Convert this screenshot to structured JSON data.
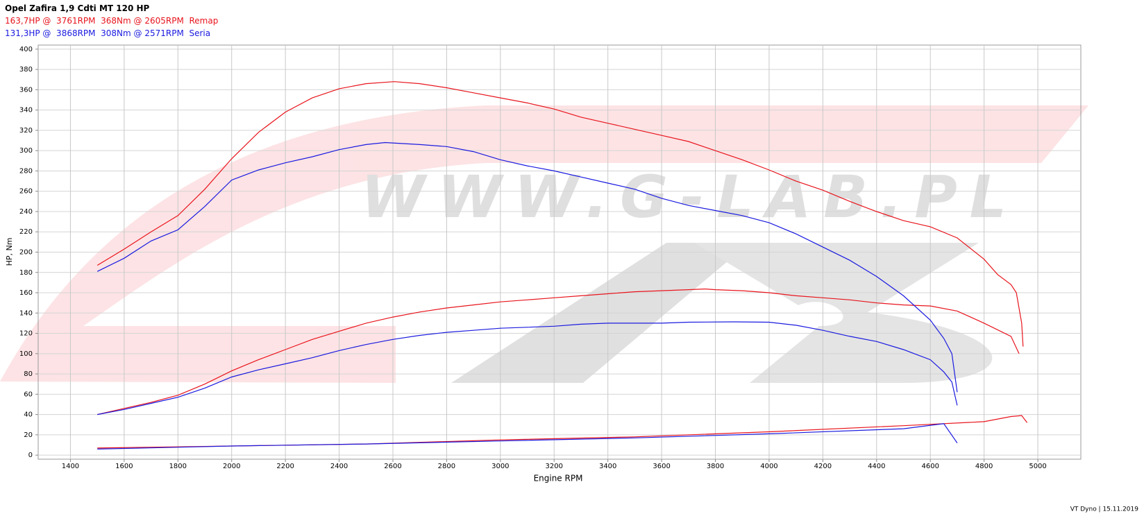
{
  "chart_data": {
    "type": "line",
    "title": "Opel Zafira 1,9 Cdti MT 120 HP",
    "x_label": "Engine RPM",
    "y_label": "HP, Nm",
    "footer": "VT Dyno | 15.11.2019",
    "xlim": [
      1280,
      5160
    ],
    "ylim": [
      -4,
      404
    ],
    "xticks": [
      1400,
      1600,
      1800,
      2000,
      2200,
      2400,
      2600,
      2800,
      3000,
      3200,
      3400,
      3600,
      3800,
      4000,
      4200,
      4400,
      4600,
      4800,
      5000
    ],
    "yticks": [
      0,
      20,
      40,
      60,
      80,
      100,
      120,
      140,
      160,
      180,
      200,
      220,
      240,
      260,
      280,
      300,
      320,
      340,
      360,
      380,
      400
    ],
    "grid": true,
    "series": [
      {
        "name": "Remap",
        "color": "#e8141c",
        "summary": "163,7HP @  3761RPM  368Nm @ 2605RPM",
        "torque": {
          "x": [
            1500,
            1600,
            1700,
            1800,
            1900,
            2000,
            2100,
            2200,
            2300,
            2400,
            2500,
            2605,
            2700,
            2800,
            2900,
            3000,
            3100,
            3200,
            3300,
            3400,
            3500,
            3600,
            3700,
            3800,
            3900,
            4000,
            4100,
            4200,
            4300,
            4400,
            4500,
            4600,
            4700,
            4800,
            4850,
            4900,
            4920,
            4940,
            4945
          ],
          "values": [
            187,
            203,
            220,
            236,
            262,
            292,
            318,
            338,
            352,
            361,
            366,
            368,
            366,
            362,
            357,
            352,
            347,
            341,
            333,
            327,
            321,
            315,
            309,
            300,
            291,
            281,
            270,
            261,
            250,
            240,
            231,
            225,
            214,
            193,
            178,
            168,
            160,
            130,
            107
          ]
        },
        "power": {
          "x": [
            1500,
            1600,
            1700,
            1800,
            1900,
            2000,
            2100,
            2200,
            2300,
            2400,
            2500,
            2600,
            2700,
            2800,
            2900,
            3000,
            3100,
            3200,
            3300,
            3400,
            3500,
            3600,
            3700,
            3761,
            3800,
            3900,
            4000,
            4100,
            4200,
            4300,
            4400,
            4500,
            4600,
            4700,
            4800,
            4900,
            4930
          ],
          "values": [
            40,
            46,
            52,
            59,
            70,
            83,
            94,
            104,
            114,
            122,
            130,
            136,
            141,
            145,
            148,
            151,
            153,
            155,
            157,
            159,
            161,
            162,
            163,
            163.7,
            163,
            162,
            160,
            157,
            155,
            153,
            150,
            148,
            147,
            142,
            130,
            117,
            100
          ]
        },
        "loss": {
          "x": [
            1500,
            2000,
            2500,
            3000,
            3500,
            4000,
            4500,
            4800,
            4900,
            4940,
            4960
          ],
          "values": [
            7,
            9,
            11,
            15,
            18,
            23,
            29,
            33,
            38,
            39,
            32
          ]
        }
      },
      {
        "name": "Seria",
        "color": "#1a1ae0",
        "summary": "131,3HP @  3868RPM  308Nm @ 2571RPM",
        "torque": {
          "x": [
            1500,
            1600,
            1700,
            1800,
            1900,
            2000,
            2100,
            2200,
            2300,
            2400,
            2500,
            2571,
            2700,
            2800,
            2900,
            3000,
            3100,
            3200,
            3300,
            3400,
            3500,
            3600,
            3700,
            3800,
            3900,
            4000,
            4100,
            4200,
            4300,
            4400,
            4500,
            4600,
            4650,
            4680,
            4700
          ],
          "values": [
            181,
            194,
            211,
            222,
            245,
            271,
            281,
            288,
            294,
            301,
            306,
            308,
            306,
            304,
            299,
            291,
            285,
            280,
            274,
            268,
            262,
            253,
            246,
            241,
            236,
            229,
            218,
            205,
            192,
            176,
            157,
            133,
            115,
            100,
            62
          ]
        },
        "power": {
          "x": [
            1500,
            1600,
            1700,
            1800,
            1900,
            2000,
            2100,
            2200,
            2300,
            2400,
            2500,
            2600,
            2700,
            2800,
            2900,
            3000,
            3100,
            3200,
            3300,
            3400,
            3500,
            3600,
            3700,
            3868,
            4000,
            4100,
            4200,
            4300,
            4400,
            4500,
            4600,
            4650,
            4680,
            4700
          ],
          "values": [
            40,
            45,
            51,
            57,
            66,
            77,
            84,
            90,
            96,
            103,
            109,
            114,
            118,
            121,
            123,
            125,
            126,
            127,
            129,
            130,
            130,
            130,
            131,
            131.3,
            131,
            128,
            123,
            117,
            112,
            104,
            94,
            82,
            72,
            49
          ]
        },
        "loss": {
          "x": [
            1500,
            2000,
            2500,
            3000,
            3500,
            4000,
            4500,
            4650,
            4700
          ],
          "values": [
            6,
            9,
            11,
            14,
            17,
            21,
            26,
            31,
            12
          ]
        }
      }
    ]
  }
}
